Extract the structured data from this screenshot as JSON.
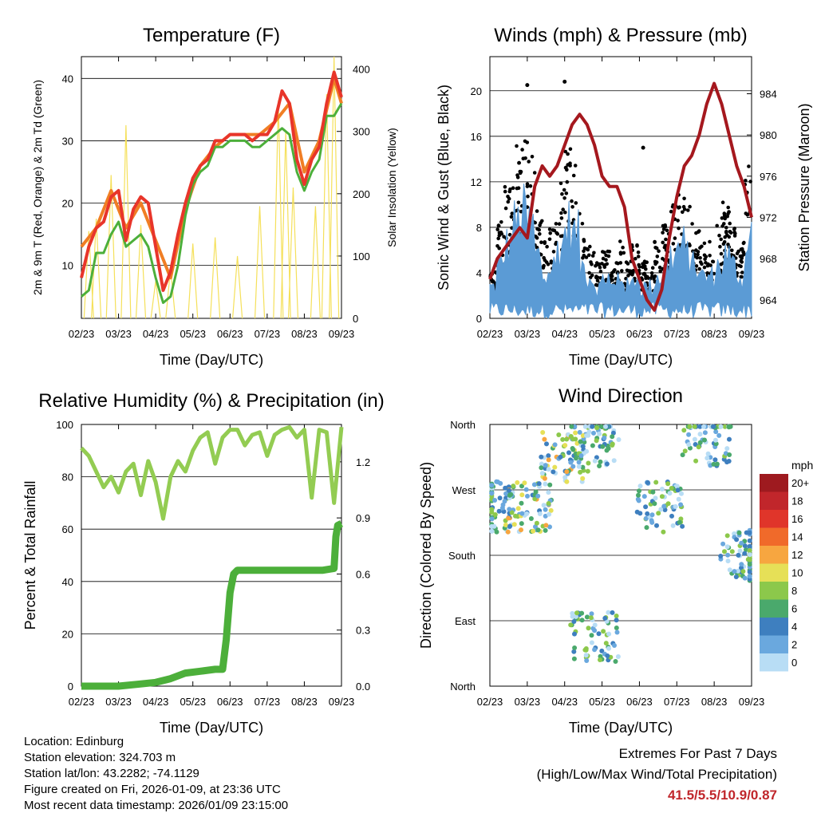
{
  "months": [
    "02/23",
    "03/23",
    "04/23",
    "05/23",
    "06/23",
    "07/23",
    "08/23",
    "09/23"
  ],
  "chart_data": [
    {
      "type": "line",
      "title": "Temperature (F)",
      "xlabel": "Time (Day/UTC)",
      "ylabel": "2m & 9m T (Red, Orange) & 2m Td (Green)",
      "ylabel_right": "Solar Insolation (Yellow)",
      "ylim": [
        1.5,
        43.5
      ],
      "yticks": [
        10,
        20,
        30,
        40
      ],
      "ylim_right": [
        0,
        420
      ],
      "yticks_right": [
        0,
        100,
        200,
        300,
        400
      ],
      "series": [
        {
          "name": "2m T",
          "color": "#e8352a",
          "x": [
            0,
            0.2,
            0.4,
            0.6,
            0.8,
            1,
            1.2,
            1.4,
            1.6,
            1.8,
            2,
            2.2,
            2.4,
            2.6,
            2.8,
            3,
            3.2,
            3.4,
            3.6,
            3.8,
            4,
            4.2,
            4.4,
            4.6,
            4.8,
            5,
            5.2,
            5.4,
            5.6,
            5.8,
            6,
            6.2,
            6.4,
            6.6,
            6.8,
            7
          ],
          "values": [
            8,
            13,
            16,
            17,
            21,
            22,
            14,
            19,
            21,
            20,
            13,
            6,
            9,
            15,
            20,
            24,
            26,
            27,
            30,
            30,
            31,
            31,
            31,
            30,
            31,
            31,
            33,
            38,
            36,
            27,
            23,
            27,
            29,
            36,
            41,
            37
          ]
        },
        {
          "name": "9m T",
          "color": "#f07e24",
          "x": [
            0,
            0.4,
            0.8,
            1.2,
            1.6,
            2,
            2.4,
            2.8,
            3.2,
            3.6,
            4,
            4.4,
            4.8,
            5.2,
            5.6,
            6,
            6.4,
            6.8,
            7
          ],
          "values": [
            13,
            16,
            22,
            16,
            20,
            14,
            8,
            19,
            26,
            29,
            31,
            31,
            31,
            33,
            36,
            25,
            30,
            40,
            36
          ]
        },
        {
          "name": "2m Td",
          "color": "#4caf3a",
          "x": [
            0,
            0.2,
            0.4,
            0.6,
            0.8,
            1,
            1.2,
            1.4,
            1.6,
            1.8,
            2,
            2.2,
            2.4,
            2.6,
            2.8,
            3,
            3.2,
            3.4,
            3.6,
            3.8,
            4,
            4.2,
            4.4,
            4.6,
            4.8,
            5,
            5.2,
            5.4,
            5.6,
            5.8,
            6,
            6.2,
            6.4,
            6.6,
            6.8,
            7
          ],
          "values": [
            5,
            6,
            12,
            12,
            15,
            17,
            13,
            14,
            15,
            13,
            8,
            4,
            5,
            10,
            18,
            23,
            25,
            26,
            29,
            29,
            30,
            30,
            30,
            29,
            29,
            30,
            31,
            32,
            31,
            25,
            22,
            25,
            27,
            34,
            34,
            36
          ]
        },
        {
          "name": "Solar Insolation",
          "color": "#f5e05a",
          "spikes_x": [
            0.2,
            0.4,
            0.8,
            1.2,
            1.6,
            2.0,
            2.4,
            3.0,
            3.6,
            4.2,
            4.8,
            5.3,
            5.5,
            5.7,
            6.3,
            6.6,
            6.8
          ],
          "spikes_values": [
            140,
            160,
            230,
            310,
            150,
            60,
            80,
            120,
            130,
            100,
            180,
            350,
            300,
            210,
            180,
            360,
            430
          ]
        }
      ]
    },
    {
      "type": "line",
      "title": "Winds (mph) & Pressure (mb)",
      "xlabel": "Time (Day/UTC)",
      "ylabel": "Sonic Wind & Gust (Blue, Black)",
      "ylabel_right": "Station Pressure (Maroon)",
      "ylim": [
        0,
        23
      ],
      "yticks": [
        0,
        4,
        8,
        12,
        16,
        20
      ],
      "ylim_right": [
        962.2,
        987.6
      ],
      "yticks_right": [
        964,
        968,
        972,
        976,
        980,
        984
      ],
      "series": [
        {
          "name": "Station Pressure",
          "color": "#a5181e",
          "x": [
            0,
            0.2,
            0.4,
            0.6,
            0.8,
            1,
            1.2,
            1.4,
            1.6,
            1.8,
            2,
            2.2,
            2.4,
            2.6,
            2.8,
            3,
            3.2,
            3.4,
            3.6,
            3.8,
            4,
            4.2,
            4.4,
            4.6,
            4.8,
            5,
            5.2,
            5.4,
            5.6,
            5.8,
            6,
            6.2,
            6.4,
            6.6,
            6.8,
            7
          ],
          "values": [
            966,
            968,
            969,
            970,
            971,
            970,
            975,
            977,
            976,
            977,
            979,
            981,
            982,
            981,
            979,
            976,
            975,
            975,
            973,
            968,
            966,
            964,
            963,
            965,
            970,
            974,
            977,
            978,
            980,
            983,
            985,
            983,
            980,
            977,
            975,
            972
          ]
        },
        {
          "name": "Sonic Wind",
          "color": "#5b9bd5",
          "style": "dense band",
          "approx_range": [
            0,
            10
          ]
        },
        {
          "name": "Gust",
          "color": "#000000",
          "style": "dots",
          "approx_peaks": [
            {
              "x": 1.0,
              "value": 20.5
            },
            {
              "x": 2.0,
              "value": 20.8
            },
            {
              "x": 4.1,
              "value": 15.0
            }
          ]
        }
      ]
    },
    {
      "type": "line",
      "title": "Relative Humidity (%) & Precipitation (in)",
      "xlabel": "Time (Day/UTC)",
      "ylabel": "Percent & Total Rainfall",
      "ylim": [
        0,
        100
      ],
      "yticks": [
        0,
        20,
        40,
        60,
        80,
        100
      ],
      "ylim_right": [
        0,
        1.4
      ],
      "yticks_right": [
        "0.0",
        "0.3",
        "0.6",
        "0.9",
        "1.2"
      ],
      "series": [
        {
          "name": "Relative Humidity",
          "color": "#93cc52",
          "x": [
            0,
            0.2,
            0.4,
            0.6,
            0.8,
            1,
            1.2,
            1.4,
            1.6,
            1.8,
            2,
            2.2,
            2.4,
            2.6,
            2.8,
            3,
            3.2,
            3.4,
            3.6,
            3.8,
            4,
            4.2,
            4.4,
            4.6,
            4.8,
            5,
            5.2,
            5.4,
            5.6,
            5.8,
            6,
            6.2,
            6.4,
            6.6,
            6.8,
            7
          ],
          "values": [
            91,
            88,
            82,
            76,
            80,
            74,
            82,
            85,
            73,
            86,
            78,
            64,
            80,
            86,
            82,
            90,
            95,
            97,
            85,
            95,
            98,
            98,
            92,
            96,
            97,
            88,
            96,
            98,
            99,
            95,
            98,
            72,
            98,
            97,
            70,
            99
          ]
        },
        {
          "name": "Total Rainfall",
          "color": "#4caf3a",
          "x": [
            0,
            0.5,
            1,
            1.5,
            2,
            2.4,
            2.8,
            3.2,
            3.6,
            3.8,
            3.9,
            4.0,
            4.1,
            4.2,
            4.4,
            4.6,
            5,
            5.5,
            6,
            6.5,
            6.8,
            6.85,
            6.9,
            7
          ],
          "values": [
            0,
            0,
            0,
            0.01,
            0.02,
            0.04,
            0.07,
            0.08,
            0.09,
            0.09,
            0.25,
            0.5,
            0.6,
            0.62,
            0.62,
            0.62,
            0.62,
            0.62,
            0.62,
            0.62,
            0.63,
            0.8,
            0.86,
            0.87
          ]
        }
      ]
    },
    {
      "type": "scatter",
      "title": "Wind Direction",
      "xlabel": "Time (Day/UTC)",
      "ylabel": "Direction (Colored By Speed)",
      "ytick_labels": [
        "North",
        "East",
        "South",
        "West",
        "North"
      ],
      "colorbar": {
        "title": "mph",
        "labels": [
          "20+",
          "18",
          "16",
          "14",
          "12",
          "10",
          "8",
          "6",
          "4",
          "2",
          "0"
        ],
        "colors": [
          "#9e1a1f",
          "#c1262b",
          "#e0352a",
          "#f06a2a",
          "#f7a640",
          "#e6e057",
          "#8cc84b",
          "#4aa96c",
          "#3e7fbf",
          "#6aa8de",
          "#b8ddf5"
        ]
      },
      "series": [
        {
          "name": "direction points",
          "x_range": [
            0,
            7
          ],
          "clusters": [
            {
              "x_center": 0.2,
              "dir": "West-Southwest"
            },
            {
              "x_center": 1.0,
              "dir": "West-Southwest"
            },
            {
              "x_center": 2.0,
              "dir": "Northwest"
            },
            {
              "x_center": 2.8,
              "dir": "North-Northwest"
            },
            {
              "x_center": 2.8,
              "dir": "East-Northeast"
            },
            {
              "x_center": 4.5,
              "dir": "West-Southwest"
            },
            {
              "x_center": 5.8,
              "dir": "North-Northwest"
            },
            {
              "x_center": 6.8,
              "dir": "South"
            }
          ]
        }
      ]
    }
  ],
  "info": {
    "location": "Location: Edinburg",
    "elevation": "Station elevation: 324.703 m",
    "latlon": "Station lat/lon: 43.2282; -74.1129",
    "created": "Figure created on Fri, 2026-01-09, at 23:36 UTC",
    "recent": "Most recent data timestamp: 2026/01/09 23:15:00"
  },
  "extremes": {
    "title": "Extremes For Past 7 Days",
    "subtitle": "(High/Low/Max Wind/Total Precipitation)",
    "value": "41.5/5.5/10.9/0.87"
  }
}
